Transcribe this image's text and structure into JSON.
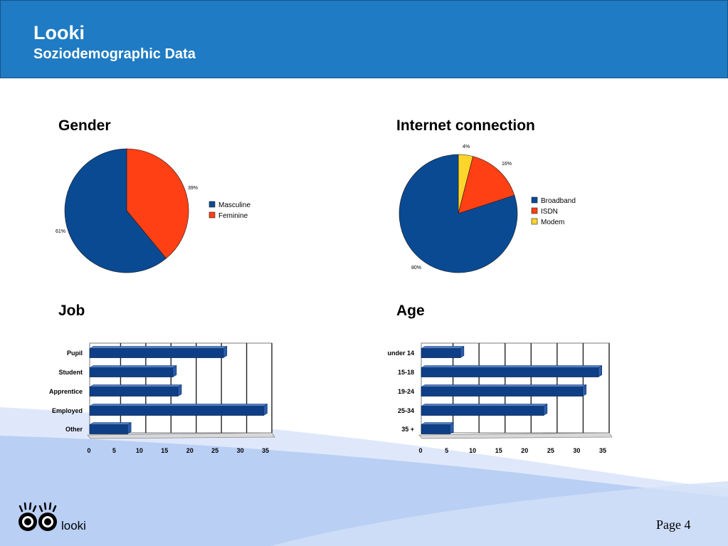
{
  "header": {
    "title": "Looki",
    "subtitle": "Soziodemographic Data"
  },
  "colors": {
    "header_bg": "#1f7bc3",
    "bar_blue": "#0e3f86",
    "pie_blue": "#0a4a93",
    "pie_red": "#ff4015",
    "pie_yellow": "#ffd52b"
  },
  "chart_data": [
    {
      "id": "gender",
      "type": "pie",
      "title": "Gender",
      "labels": [
        "Masculine",
        "Feminine"
      ],
      "values": [
        61,
        39
      ],
      "value_labels": [
        "61%",
        "39%"
      ],
      "colors": [
        "#0a4a93",
        "#ff4015"
      ],
      "legend": "right"
    },
    {
      "id": "connection",
      "type": "pie",
      "title": "Internet connection",
      "labels": [
        "Broadband",
        "ISDN",
        "Modem"
      ],
      "values": [
        80,
        16,
        4
      ],
      "value_labels": [
        "80%",
        "16%",
        "4%"
      ],
      "colors": [
        "#0a4a93",
        "#ff4015",
        "#ffd52b"
      ],
      "legend": "right"
    },
    {
      "id": "job",
      "type": "bar",
      "orientation": "horizontal",
      "title": "Job",
      "categories": [
        "Pupil",
        "Student",
        "Apprentice",
        "Employed",
        "Other"
      ],
      "values": [
        26.5,
        16.5,
        17.5,
        34.5,
        7.5
      ],
      "xlim": [
        0,
        35
      ],
      "xticks": [
        "0",
        "5",
        "10",
        "15",
        "20",
        "25",
        "30",
        "35"
      ],
      "grid": true
    },
    {
      "id": "age",
      "type": "bar",
      "orientation": "horizontal",
      "title": "Age",
      "categories": [
        "under 14",
        "15-18",
        "19-24",
        "25-34",
        "35 +"
      ],
      "values": [
        7.5,
        34,
        31,
        23.5,
        5.5
      ],
      "xlim": [
        0,
        35
      ],
      "xticks": [
        "0",
        "5",
        "10",
        "15",
        "20",
        "25",
        "30",
        "35"
      ],
      "grid": true
    }
  ],
  "footer": {
    "brand": "looki",
    "page": "Page 4"
  }
}
